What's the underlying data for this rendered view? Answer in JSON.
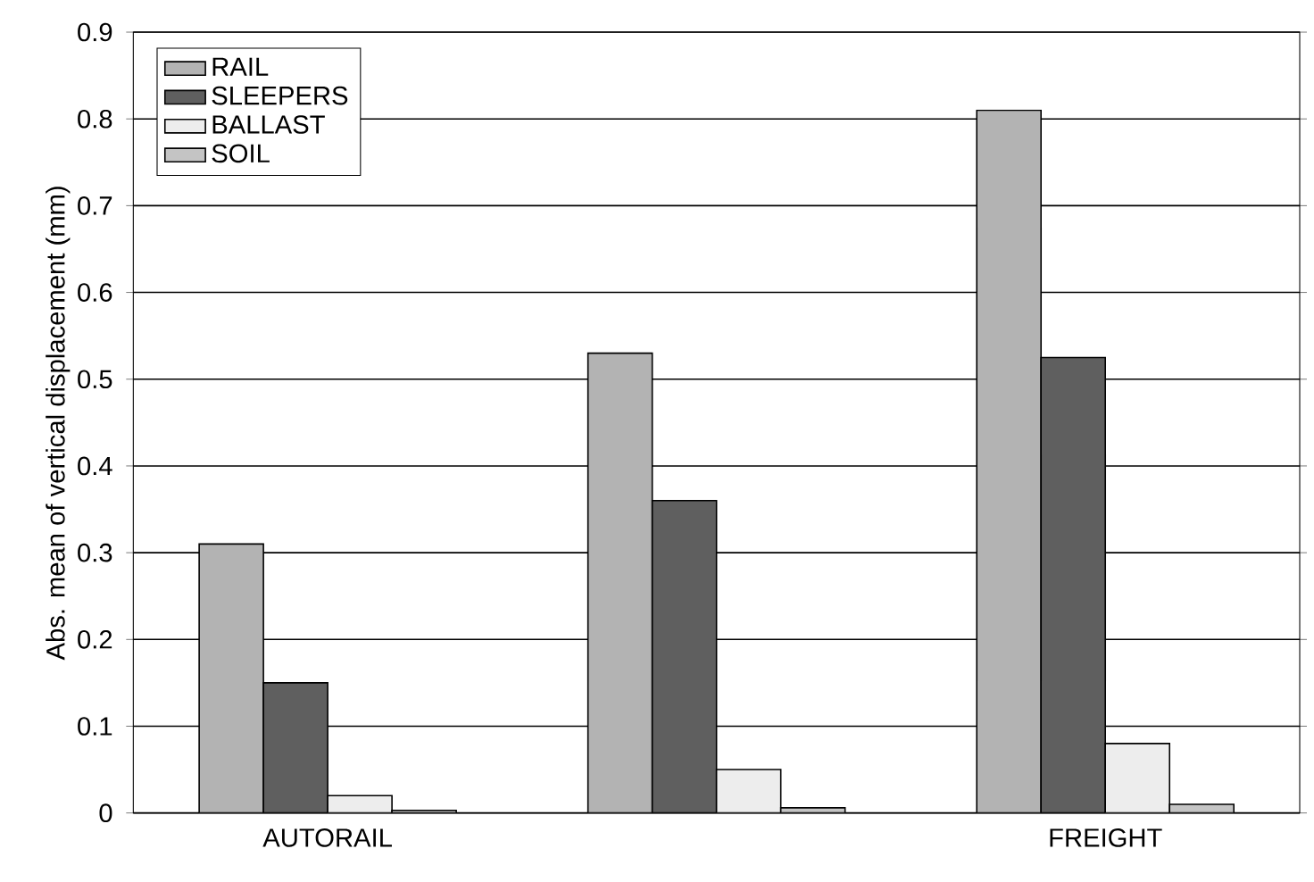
{
  "chart_data": {
    "type": "bar",
    "ylabel": "Abs. mean of vertical displacement (mm)",
    "categories": [
      "AUTORAIL",
      null,
      "FREIGHT"
    ],
    "series": [
      {
        "name": "RAIL",
        "color": "#b3b3b3",
        "values": [
          0.31,
          0.53,
          0.81
        ]
      },
      {
        "name": "SLEEPERS",
        "color": "#5f5f5f",
        "values": [
          0.15,
          0.36,
          0.525
        ]
      },
      {
        "name": "BALLAST",
        "color": "#ededed",
        "values": [
          0.02,
          0.05,
          0.08
        ]
      },
      {
        "name": "SOIL",
        "color": "#c4c4c4",
        "values": [
          0.003,
          0.006,
          0.01
        ]
      }
    ],
    "ylim": [
      0,
      0.9
    ],
    "yticks": [
      0,
      0.1,
      0.2,
      0.3,
      0.4,
      0.5,
      0.6,
      0.7,
      0.8,
      0.9
    ],
    "grid": "y",
    "legend": "top left"
  }
}
